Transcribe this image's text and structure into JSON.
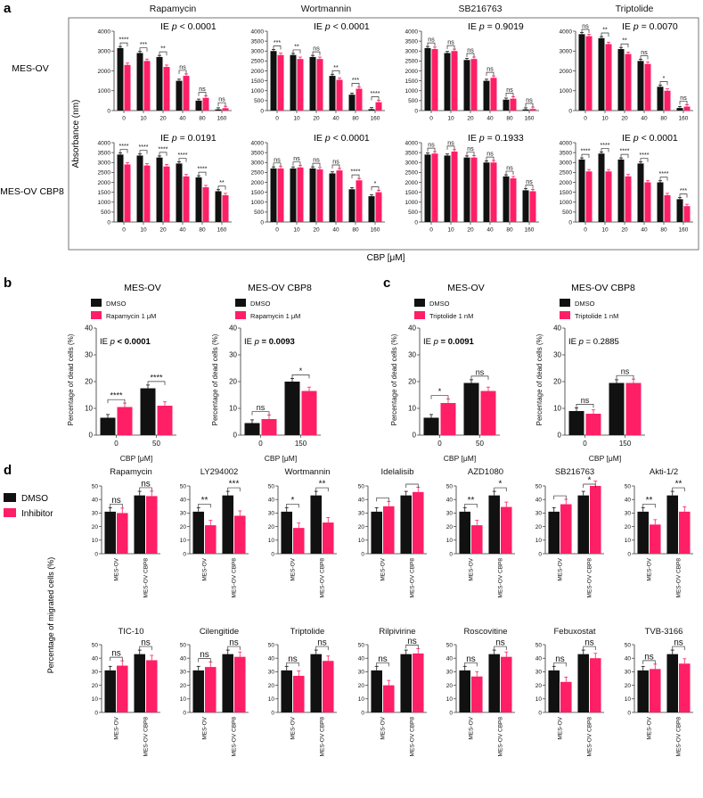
{
  "colors": {
    "dmso": "#111111",
    "treat": "#ff1f66",
    "axis": "#333333",
    "text": "#111111"
  },
  "panel_a": {
    "letter": "a",
    "col_titles": [
      "Rapamycin",
      "Wortmannin",
      "SB216763",
      "Triptolide"
    ],
    "row_labels": [
      "MES-OV",
      "MES-OV CBP8"
    ],
    "ylabel": "Absorbance (nm)",
    "xlabel": "CBP [μM]",
    "ie_prefix": "IE ",
    "ie_p": "p",
    "ie_texts": [
      [
        "< 0.0001",
        "< 0.0001",
        "= 0.9019",
        "= 0.0070"
      ],
      [
        "= 0.0191",
        "< 0.0001",
        "= 0.1933",
        "< 0.0001"
      ]
    ]
  },
  "panel_b": {
    "letter": "b",
    "titles": [
      "MES-OV",
      "MES-OV CBP8"
    ],
    "legend_dmso": "DMSO",
    "legend_treat": "Rapamycin 1 μM",
    "ylabel": "Percentage of dead cells (%)",
    "xlabel": "CBP [μM]",
    "ie_texts": [
      "< 0.0001",
      "= 0.0093"
    ]
  },
  "panel_c": {
    "letter": "c",
    "titles": [
      "MES-OV",
      "MES-OV CBP8"
    ],
    "legend_dmso": "DMSO",
    "legend_treat": "Triptolide 1 nM",
    "ylabel": "Percentage of dead cells (%)",
    "xlabel": "CBP [μM]",
    "ie_texts": [
      "= 0.0091",
      "= 0.2885"
    ]
  },
  "panel_d": {
    "letter": "d",
    "legend_dmso": "DMSO",
    "legend_treat": "Inhibitor",
    "ylabel": "Percentage of migrated cells (%)"
  },
  "chart_data": [
    {
      "type": "bar",
      "panel": "a",
      "row": "MES-OV",
      "title": "Rapamycin",
      "x": [
        0,
        10,
        20,
        40,
        80,
        160
      ],
      "ylim": [
        0,
        4000
      ],
      "yticks": [
        0,
        1000,
        2000,
        3000,
        4000
      ],
      "series": [
        {
          "name": "DMSO",
          "values": [
            3150,
            2900,
            2700,
            1500,
            500,
            60
          ]
        },
        {
          "name": "Rapamycin",
          "values": [
            2300,
            2500,
            2200,
            1750,
            640,
            120
          ]
        }
      ],
      "sig": [
        "****",
        "***",
        "**",
        "ns",
        "ns",
        "ns"
      ]
    },
    {
      "type": "bar",
      "panel": "a",
      "row": "MES-OV",
      "title": "Wortmannin",
      "x": [
        0,
        10,
        20,
        40,
        80,
        160
      ],
      "ylim": [
        0,
        4000
      ],
      "yticks": [
        0,
        500,
        1000,
        1500,
        2000,
        2500,
        3000,
        3500,
        4000
      ],
      "series": [
        {
          "name": "DMSO",
          "values": [
            3000,
            2800,
            2700,
            1750,
            800,
            70
          ]
        },
        {
          "name": "Wortmannin",
          "values": [
            2800,
            2600,
            2600,
            1550,
            1100,
            420
          ]
        }
      ],
      "sig": [
        "***",
        "**",
        "ns",
        "**",
        "***",
        "****"
      ]
    },
    {
      "type": "bar",
      "panel": "a",
      "row": "MES-OV",
      "title": "SB216763",
      "x": [
        0,
        10,
        20,
        40,
        80,
        160
      ],
      "ylim": [
        0,
        4000
      ],
      "yticks": [
        0,
        500,
        1000,
        1500,
        2000,
        2500,
        3000,
        3500,
        4000
      ],
      "series": [
        {
          "name": "DMSO",
          "values": [
            3150,
            2900,
            2550,
            1500,
            550,
            60
          ]
        },
        {
          "name": "SB216763",
          "values": [
            3100,
            3000,
            2600,
            1650,
            600,
            80
          ]
        }
      ],
      "sig": [
        "ns",
        "ns",
        "ns",
        "ns",
        "ns",
        "ns"
      ]
    },
    {
      "type": "bar",
      "panel": "a",
      "row": "MES-OV",
      "title": "Triptolide",
      "x": [
        0,
        10,
        20,
        40,
        80,
        160
      ],
      "ylim": [
        0,
        4000
      ],
      "yticks": [
        0,
        1000,
        2000,
        3000,
        4000
      ],
      "series": [
        {
          "name": "DMSO",
          "values": [
            3850,
            3650,
            3100,
            2500,
            1200,
            130
          ]
        },
        {
          "name": "Triptolide",
          "values": [
            3750,
            3350,
            2850,
            2350,
            1000,
            200
          ]
        }
      ],
      "sig": [
        "ns",
        "**",
        "**",
        "ns",
        "*",
        "ns"
      ]
    },
    {
      "type": "bar",
      "panel": "a",
      "row": "MES-OV CBP8",
      "title": "Rapamycin",
      "x": [
        0,
        10,
        20,
        40,
        80,
        160
      ],
      "ylim": [
        0,
        4000
      ],
      "yticks": [
        0,
        500,
        1000,
        1500,
        2000,
        2500,
        3000,
        3500,
        4000
      ],
      "series": [
        {
          "name": "DMSO",
          "values": [
            3400,
            3350,
            3250,
            2950,
            2250,
            1550
          ]
        },
        {
          "name": "Rapamycin",
          "values": [
            2900,
            2850,
            2800,
            2300,
            1750,
            1350
          ]
        }
      ],
      "sig": [
        "****",
        "****",
        "****",
        "****",
        "****",
        "**"
      ]
    },
    {
      "type": "bar",
      "panel": "a",
      "row": "MES-OV CBP8",
      "title": "Wortmannin",
      "x": [
        0,
        10,
        20,
        40,
        80,
        160
      ],
      "ylim": [
        0,
        4000
      ],
      "yticks": [
        0,
        500,
        1000,
        1500,
        2000,
        2500,
        3000,
        3500,
        4000
      ],
      "series": [
        {
          "name": "DMSO",
          "values": [
            2700,
            2700,
            2700,
            2450,
            1650,
            1300
          ]
        },
        {
          "name": "Wortmannin",
          "values": [
            2700,
            2750,
            2650,
            2600,
            2100,
            1500
          ]
        }
      ],
      "sig": [
        "ns",
        "ns",
        "ns",
        "ns",
        "****",
        "*"
      ]
    },
    {
      "type": "bar",
      "panel": "a",
      "row": "MES-OV CBP8",
      "title": "SB216763",
      "x": [
        0,
        10,
        20,
        40,
        80,
        160
      ],
      "ylim": [
        0,
        4000
      ],
      "yticks": [
        0,
        500,
        1000,
        1500,
        2000,
        2500,
        3000,
        3500,
        4000
      ],
      "series": [
        {
          "name": "DMSO",
          "values": [
            3400,
            3350,
            3250,
            3000,
            2300,
            1600
          ]
        },
        {
          "name": "SB216763",
          "values": [
            3450,
            3550,
            3250,
            3000,
            2200,
            1550
          ]
        }
      ],
      "sig": [
        "ns",
        "ns",
        "ns",
        "ns",
        "ns",
        "ns"
      ]
    },
    {
      "type": "bar",
      "panel": "a",
      "row": "MES-OV CBP8",
      "title": "Triptolide",
      "x": [
        0,
        10,
        20,
        40,
        80,
        160
      ],
      "ylim": [
        0,
        4000
      ],
      "yticks": [
        0,
        500,
        1000,
        1500,
        2000,
        2500,
        3000,
        3500,
        4000
      ],
      "series": [
        {
          "name": "DMSO",
          "values": [
            3150,
            3450,
            3150,
            2950,
            2000,
            1150
          ]
        },
        {
          "name": "Triptolide",
          "values": [
            2550,
            2550,
            2300,
            2000,
            1350,
            800
          ]
        }
      ],
      "sig": [
        "****",
        "****",
        "****",
        "****",
        "****",
        "***"
      ]
    },
    {
      "type": "bar",
      "panel": "b",
      "title": "MES-OV",
      "x": [
        0,
        50
      ],
      "ylim": [
        0,
        40
      ],
      "yticks": [
        0,
        10,
        20,
        30,
        40
      ],
      "series": [
        {
          "name": "DMSO",
          "values": [
            6.5,
            17.5
          ]
        },
        {
          "name": "Rapamycin 1 μM",
          "values": [
            10.5,
            11
          ]
        }
      ],
      "sig": [
        "****",
        "****"
      ]
    },
    {
      "type": "bar",
      "panel": "b",
      "title": "MES-OV CBP8",
      "x": [
        0,
        150
      ],
      "ylim": [
        0,
        40
      ],
      "yticks": [
        0,
        10,
        20,
        30,
        40
      ],
      "series": [
        {
          "name": "DMSO",
          "values": [
            4.5,
            20
          ]
        },
        {
          "name": "Rapamycin 1 μM",
          "values": [
            6,
            16.5
          ]
        }
      ],
      "sig": [
        "ns",
        "*"
      ]
    },
    {
      "type": "bar",
      "panel": "c",
      "title": "MES-OV",
      "x": [
        0,
        50
      ],
      "ylim": [
        0,
        40
      ],
      "yticks": [
        0,
        10,
        20,
        30,
        40
      ],
      "series": [
        {
          "name": "DMSO",
          "values": [
            6.5,
            19.5
          ]
        },
        {
          "name": "Triptolide 1 nM",
          "values": [
            12,
            16.5
          ]
        }
      ],
      "sig": [
        "*",
        "ns"
      ]
    },
    {
      "type": "bar",
      "panel": "c",
      "title": "MES-OV CBP8",
      "x": [
        0,
        150
      ],
      "ylim": [
        0,
        40
      ],
      "yticks": [
        0,
        10,
        20,
        30,
        40
      ],
      "series": [
        {
          "name": "DMSO",
          "values": [
            9,
            19.5
          ]
        },
        {
          "name": "Triptolide 1 nM",
          "values": [
            8,
            19.5
          ]
        }
      ],
      "sig": [
        "ns",
        "ns"
      ]
    },
    {
      "type": "bar",
      "panel": "d",
      "title": "Rapamycin",
      "categories": [
        "MES-OV",
        "MES-OV CBP8"
      ],
      "ylim": [
        0,
        50
      ],
      "yticks": [
        0,
        10,
        20,
        30,
        40,
        50
      ],
      "series": [
        {
          "name": "DMSO",
          "values": [
            31,
            43
          ]
        },
        {
          "name": "Inhibitor",
          "values": [
            30,
            42.5
          ]
        }
      ],
      "sig": [
        "ns",
        "ns"
      ]
    },
    {
      "type": "bar",
      "panel": "d",
      "title": "LY294002",
      "categories": [
        "MES-OV",
        "MES-OV CBP8"
      ],
      "ylim": [
        0,
        50
      ],
      "yticks": [
        0,
        10,
        20,
        30,
        40,
        50
      ],
      "series": [
        {
          "name": "DMSO",
          "values": [
            31,
            43
          ]
        },
        {
          "name": "Inhibitor",
          "values": [
            21,
            28
          ]
        }
      ],
      "sig": [
        "**",
        "***"
      ]
    },
    {
      "type": "bar",
      "panel": "d",
      "title": "Wortmannin",
      "categories": [
        "MES-OV",
        "MES-OV CBP8"
      ],
      "ylim": [
        0,
        50
      ],
      "yticks": [
        0,
        10,
        20,
        30,
        40,
        50
      ],
      "series": [
        {
          "name": "DMSO",
          "values": [
            31,
            43
          ]
        },
        {
          "name": "Inhibitor",
          "values": [
            19,
            23
          ]
        }
      ],
      "sig": [
        "*",
        "**"
      ]
    },
    {
      "type": "bar",
      "panel": "d",
      "title": "Idelalisib",
      "categories": [
        "MES-OV",
        "MES-OV CBP8"
      ],
      "ylim": [
        0,
        50
      ],
      "yticks": [
        0,
        10,
        20,
        30,
        40,
        50
      ],
      "series": [
        {
          "name": "DMSO",
          "values": [
            31,
            43
          ]
        },
        {
          "name": "Inhibitor",
          "values": [
            35,
            45.5
          ]
        }
      ],
      "sig": [
        "",
        ""
      ]
    },
    {
      "type": "bar",
      "panel": "d",
      "title": "AZD1080",
      "categories": [
        "MES-OV",
        "MES-OV CBP8"
      ],
      "ylim": [
        0,
        50
      ],
      "yticks": [
        0,
        10,
        20,
        30,
        40,
        50
      ],
      "series": [
        {
          "name": "DMSO",
          "values": [
            31,
            43
          ]
        },
        {
          "name": "Inhibitor",
          "values": [
            21,
            34.5
          ]
        }
      ],
      "sig": [
        "**",
        "*"
      ]
    },
    {
      "type": "bar",
      "panel": "d",
      "title": "SB216763",
      "categories": [
        "MES-OV",
        "MES-OV CBP8"
      ],
      "ylim": [
        0,
        50
      ],
      "yticks": [
        0,
        10,
        20,
        30,
        40,
        50
      ],
      "series": [
        {
          "name": "DMSO",
          "values": [
            31,
            43
          ]
        },
        {
          "name": "Inhibitor",
          "values": [
            36.5,
            50
          ]
        }
      ],
      "sig": [
        "",
        "*"
      ]
    },
    {
      "type": "bar",
      "panel": "d",
      "title": "Akti-1/2",
      "categories": [
        "MES-OV",
        "MES-OV CBP8"
      ],
      "ylim": [
        0,
        50
      ],
      "yticks": [
        0,
        10,
        20,
        30,
        40,
        50
      ],
      "series": [
        {
          "name": "DMSO",
          "values": [
            31,
            43
          ]
        },
        {
          "name": "Inhibitor",
          "values": [
            21.5,
            31
          ]
        }
      ],
      "sig": [
        "**",
        "**"
      ]
    },
    {
      "type": "bar",
      "panel": "d",
      "title": "TIC-10",
      "categories": [
        "MES-OV",
        "MES-OV CBP8"
      ],
      "ylim": [
        0,
        50
      ],
      "yticks": [
        0,
        10,
        20,
        30,
        40,
        50
      ],
      "series": [
        {
          "name": "DMSO",
          "values": [
            31,
            43
          ]
        },
        {
          "name": "Inhibitor",
          "values": [
            34.5,
            38.5
          ]
        }
      ],
      "sig": [
        "ns",
        "ns"
      ]
    },
    {
      "type": "bar",
      "panel": "d",
      "title": "Cilengitide",
      "categories": [
        "MES-OV",
        "MES-OV CBP8"
      ],
      "ylim": [
        0,
        50
      ],
      "yticks": [
        0,
        10,
        20,
        30,
        40,
        50
      ],
      "series": [
        {
          "name": "DMSO",
          "values": [
            31,
            43
          ]
        },
        {
          "name": "Inhibitor",
          "values": [
            33.5,
            41
          ]
        }
      ],
      "sig": [
        "ns",
        "ns"
      ]
    },
    {
      "type": "bar",
      "panel": "d",
      "title": "Triptolide",
      "categories": [
        "MES-OV",
        "MES-OV CBP8"
      ],
      "ylim": [
        0,
        50
      ],
      "yticks": [
        0,
        10,
        20,
        30,
        40,
        50
      ],
      "series": [
        {
          "name": "DMSO",
          "values": [
            31,
            43
          ]
        },
        {
          "name": "Inhibitor",
          "values": [
            27,
            38
          ]
        }
      ],
      "sig": [
        "ns",
        "ns"
      ]
    },
    {
      "type": "bar",
      "panel": "d",
      "title": "Rilpivirine",
      "categories": [
        "MES-OV",
        "MES-OV CBP8"
      ],
      "ylim": [
        0,
        50
      ],
      "yticks": [
        0,
        10,
        20,
        30,
        40,
        50
      ],
      "series": [
        {
          "name": "DMSO",
          "values": [
            31,
            43
          ]
        },
        {
          "name": "Inhibitor",
          "values": [
            20,
            43.5
          ]
        }
      ],
      "sig": [
        "ns",
        "ns"
      ]
    },
    {
      "type": "bar",
      "panel": "d",
      "title": "Roscovitine",
      "categories": [
        "MES-OV",
        "MES-OV CBP8"
      ],
      "ylim": [
        0,
        50
      ],
      "yticks": [
        0,
        10,
        20,
        30,
        40,
        50
      ],
      "series": [
        {
          "name": "DMSO",
          "values": [
            31,
            43
          ]
        },
        {
          "name": "Inhibitor",
          "values": [
            26.5,
            41
          ]
        }
      ],
      "sig": [
        "ns",
        "ns"
      ]
    },
    {
      "type": "bar",
      "panel": "d",
      "title": "Febuxostat",
      "categories": [
        "MES-OV",
        "MES-OV CBP8"
      ],
      "ylim": [
        0,
        50
      ],
      "yticks": [
        0,
        10,
        20,
        30,
        40,
        50
      ],
      "series": [
        {
          "name": "DMSO",
          "values": [
            31,
            43
          ]
        },
        {
          "name": "Inhibitor",
          "values": [
            22.5,
            40
          ]
        }
      ],
      "sig": [
        "ns",
        "ns"
      ]
    },
    {
      "type": "bar",
      "panel": "d",
      "title": "TVB-3166",
      "categories": [
        "MES-OV",
        "MES-OV CBP8"
      ],
      "ylim": [
        0,
        50
      ],
      "yticks": [
        0,
        10,
        20,
        30,
        40,
        50
      ],
      "series": [
        {
          "name": "DMSO",
          "values": [
            31,
            43
          ]
        },
        {
          "name": "Inhibitor",
          "values": [
            32,
            36
          ]
        }
      ],
      "sig": [
        "ns",
        "ns"
      ]
    }
  ]
}
